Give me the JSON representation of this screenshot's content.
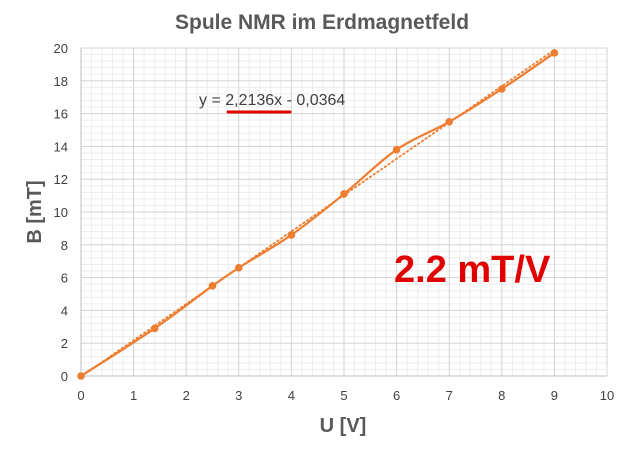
{
  "chart_data": {
    "type": "scatter",
    "title": "Spule NMR im Erdmagnetfeld",
    "xlabel": "U [V]",
    "ylabel": "B [mT]",
    "xlim": [
      0,
      10
    ],
    "ylim": [
      0,
      20
    ],
    "x_ticks": [
      "0",
      "1",
      "2",
      "3",
      "4",
      "5",
      "6",
      "7",
      "8",
      "9",
      "10"
    ],
    "y_ticks": [
      "0",
      "2",
      "4",
      "6",
      "8",
      "10",
      "12",
      "14",
      "16",
      "18",
      "20"
    ],
    "grid": true,
    "minor_grid": true,
    "series": [
      {
        "x": [
          0,
          1.4,
          2.5,
          3,
          4,
          5,
          6,
          7,
          8,
          9
        ],
        "y": [
          0,
          2.9,
          5.5,
          6.6,
          8.6,
          11.1,
          13.8,
          15.5,
          17.5,
          19.7
        ],
        "color": "#ED7D31",
        "line": "smooth",
        "markers": true
      }
    ],
    "trendline": {
      "type": "linear",
      "slope": 2.2136,
      "intercept": -0.0364,
      "color": "#ED7D31",
      "style": "dotted",
      "equation_label": "y = 2,2136x - 0,0364",
      "underline_color": "#E00000"
    },
    "annotation": {
      "text": "2.2 mT/V",
      "color": "#E00000"
    }
  }
}
